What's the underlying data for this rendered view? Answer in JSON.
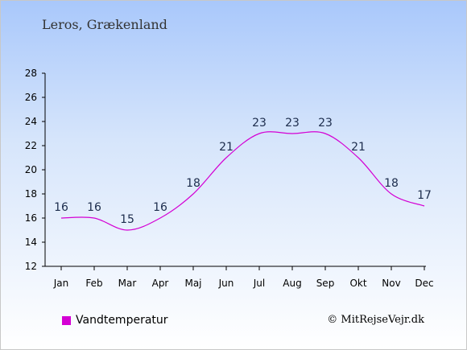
{
  "page": {
    "subtitle": "Leros, Grækenland"
  },
  "chart_data": {
    "type": "line",
    "title": "",
    "subtitle": "Leros, Grækenland",
    "xlabel": "",
    "ylabel": "",
    "categories": [
      "Jan",
      "Feb",
      "Mar",
      "Apr",
      "Maj",
      "Jun",
      "Jul",
      "Aug",
      "Sep",
      "Okt",
      "Nov",
      "Dec"
    ],
    "series": [
      {
        "name": "Vandtemperatur",
        "values": [
          16,
          16,
          15,
          16,
          18,
          21,
          23,
          23,
          23,
          21,
          18,
          17
        ],
        "color": "#d400d4"
      }
    ],
    "ylim": [
      12,
      28
    ],
    "yticks": [
      12,
      14,
      16,
      18,
      20,
      22,
      24,
      26,
      28
    ],
    "grid": false,
    "legend": "bottom-left"
  },
  "legend": {
    "label": "Vandtemperatur",
    "color": "#d400d4"
  },
  "credit": "© MitRejseVejr.dk"
}
